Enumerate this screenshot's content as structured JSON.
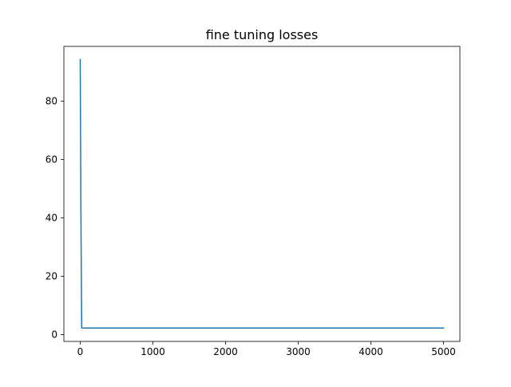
{
  "chart_data": {
    "type": "line",
    "title": "fine tuning losses",
    "xlabel": "",
    "ylabel": "",
    "xlim": [
      -225,
      5225
    ],
    "ylim": [
      -2.3,
      98.8
    ],
    "xticks": [
      0,
      1000,
      2000,
      3000,
      4000,
      5000
    ],
    "xtick_labels": [
      "0",
      "1000",
      "2000",
      "3000",
      "4000",
      "5000"
    ],
    "yticks": [
      0,
      20,
      40,
      60,
      80
    ],
    "ytick_labels": [
      "0",
      "20",
      "40",
      "60",
      "80"
    ],
    "grid": false,
    "legend": "none",
    "series": [
      {
        "color": "#1f77b4",
        "x": [
          0,
          10,
          20,
          50,
          100,
          500,
          1000,
          2000,
          3000,
          4000,
          5000
        ],
        "y": [
          94.3,
          40,
          2.3,
          2.3,
          2.3,
          2.3,
          2.3,
          2.3,
          2.3,
          2.3,
          2.3
        ]
      }
    ]
  }
}
